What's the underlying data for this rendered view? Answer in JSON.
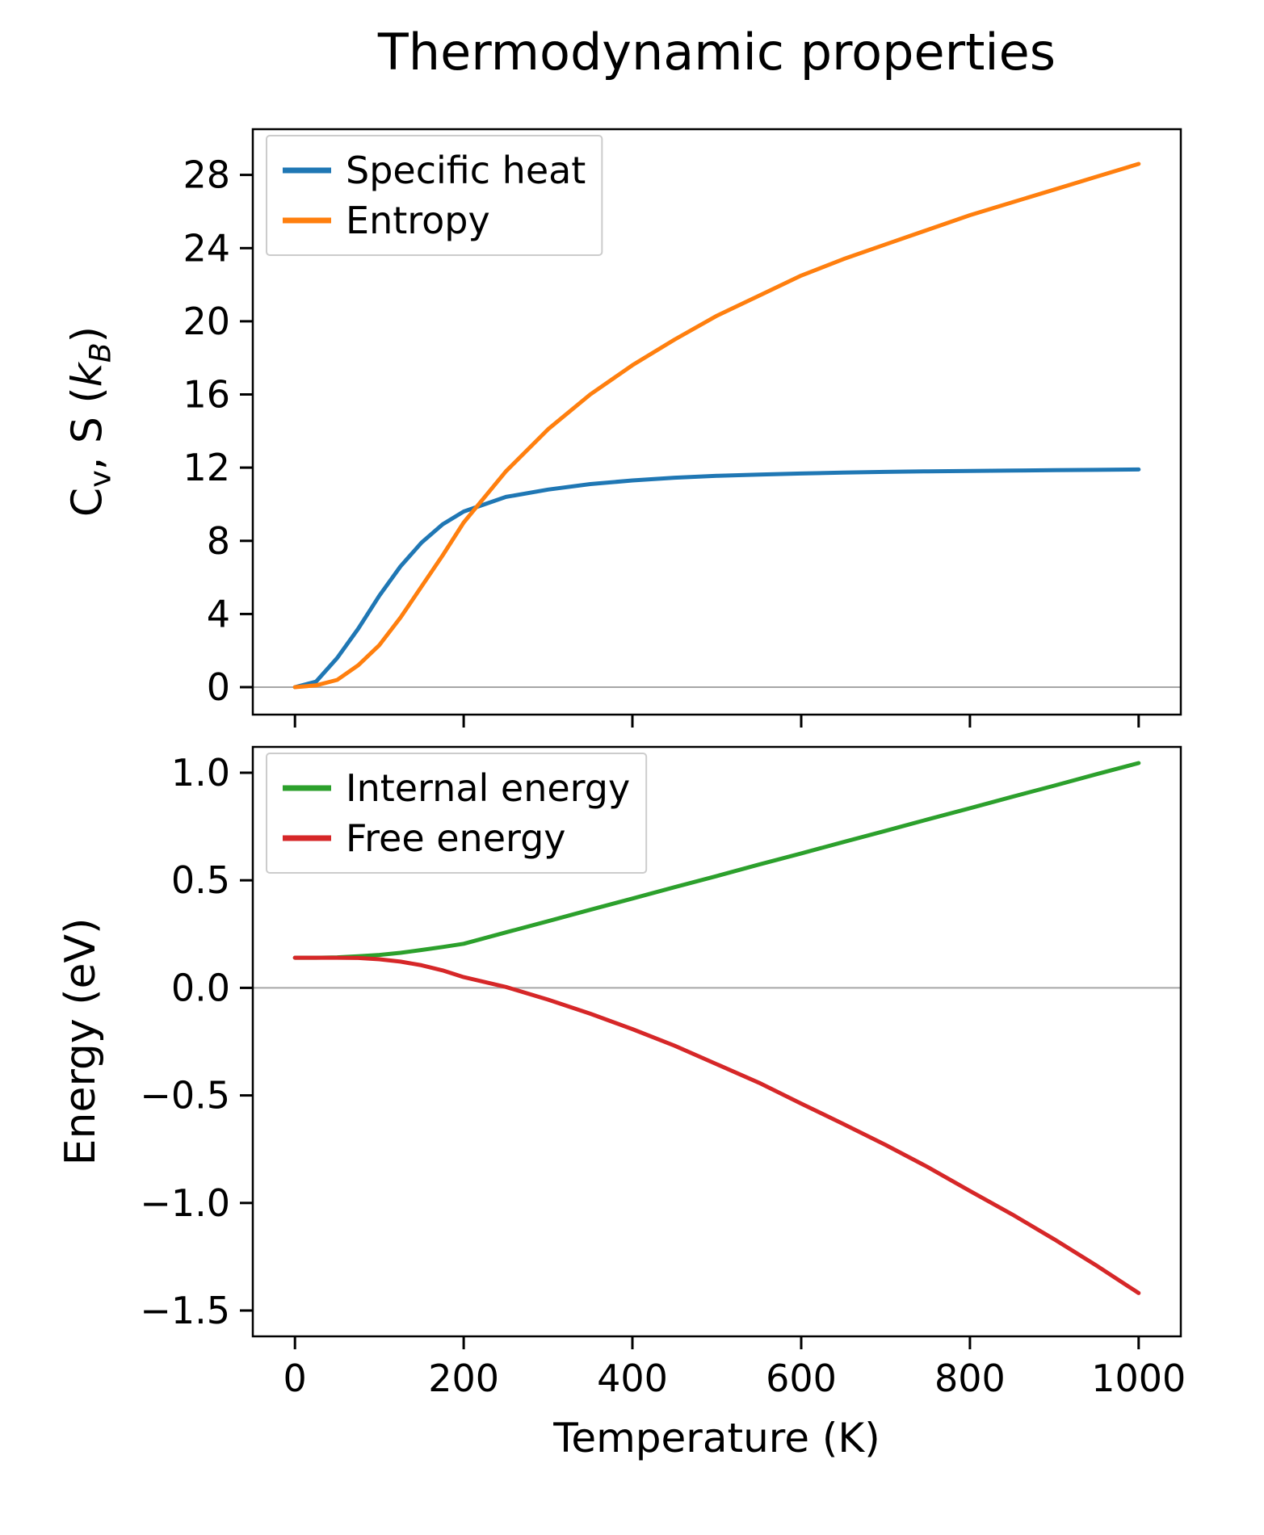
{
  "figure": {
    "title": "Thermodynamic properties",
    "xlabel": "Temperature (K)",
    "background": "#ffffff"
  },
  "chart_data": [
    {
      "id": "cv-entropy",
      "type": "line",
      "title": "",
      "xlabel": "",
      "ylabel": "Cv, S (kB)",
      "ylabel_parts": [
        {
          "t": "C"
        },
        {
          "t": "v",
          "sub": true
        },
        {
          "t": ", S ("
        },
        {
          "t": "k",
          "italic": true
        },
        {
          "t": "B",
          "sub": true,
          "italic": true
        },
        {
          "t": ")"
        }
      ],
      "xlim": [
        -50,
        1050
      ],
      "ylim": [
        -1.5,
        30.5
      ],
      "xticks": [
        0,
        200,
        400,
        600,
        800,
        1000
      ],
      "xtick_labels": [],
      "yticks": [
        0,
        4,
        8,
        12,
        16,
        20,
        24,
        28
      ],
      "ytick_labels": [
        "0",
        "4",
        "8",
        "12",
        "16",
        "20",
        "24",
        "28"
      ],
      "grid": false,
      "zero_line": true,
      "legend": {
        "position": "upper-left"
      },
      "x": [
        0,
        25,
        50,
        75,
        100,
        125,
        150,
        175,
        200,
        250,
        300,
        350,
        400,
        450,
        500,
        550,
        600,
        650,
        700,
        750,
        800,
        850,
        900,
        950,
        1000
      ],
      "series": [
        {
          "name": "Specific heat",
          "color": "#1f77b4",
          "values": [
            0,
            0.3,
            1.6,
            3.2,
            5.0,
            6.6,
            7.9,
            8.9,
            9.6,
            10.4,
            10.8,
            11.1,
            11.3,
            11.45,
            11.55,
            11.62,
            11.68,
            11.73,
            11.77,
            11.8,
            11.82,
            11.84,
            11.86,
            11.88,
            11.9
          ]
        },
        {
          "name": "Entropy",
          "color": "#ff7f0e",
          "values": [
            0,
            0.1,
            0.4,
            1.2,
            2.3,
            3.8,
            5.5,
            7.2,
            9.0,
            11.8,
            14.1,
            16.0,
            17.6,
            19.0,
            20.3,
            21.4,
            22.5,
            23.4,
            24.2,
            25.0,
            25.8,
            26.5,
            27.2,
            27.9,
            28.6
          ]
        }
      ]
    },
    {
      "id": "energy",
      "type": "line",
      "title": "",
      "xlabel": "Temperature (K)",
      "ylabel": "Energy (eV)",
      "xlim": [
        -50,
        1050
      ],
      "ylim": [
        -1.62,
        1.12
      ],
      "xticks": [
        0,
        200,
        400,
        600,
        800,
        1000
      ],
      "xtick_labels": [
        "0",
        "200",
        "400",
        "600",
        "800",
        "1000"
      ],
      "yticks": [
        -1.5,
        -1.0,
        -0.5,
        0.0,
        0.5,
        1.0
      ],
      "ytick_labels": [
        "−1.5",
        "−1.0",
        "−0.5",
        "0.0",
        "0.5",
        "1.0"
      ],
      "grid": false,
      "zero_line": true,
      "legend": {
        "position": "upper-left"
      },
      "x": [
        0,
        25,
        50,
        75,
        100,
        125,
        150,
        175,
        200,
        250,
        300,
        350,
        400,
        450,
        500,
        550,
        600,
        650,
        700,
        750,
        800,
        850,
        900,
        950,
        1000
      ],
      "series": [
        {
          "name": "Internal energy",
          "color": "#2ca02c",
          "values": [
            0.14,
            0.14,
            0.142,
            0.147,
            0.153,
            0.163,
            0.176,
            0.19,
            0.205,
            0.258,
            0.31,
            0.363,
            0.415,
            0.468,
            0.52,
            0.573,
            0.625,
            0.678,
            0.73,
            0.783,
            0.835,
            0.888,
            0.94,
            0.993,
            1.045
          ]
        },
        {
          "name": "Free energy",
          "color": "#d62728",
          "values": [
            0.14,
            0.14,
            0.14,
            0.139,
            0.133,
            0.122,
            0.105,
            0.081,
            0.05,
            0.004,
            -0.055,
            -0.12,
            -0.192,
            -0.269,
            -0.355,
            -0.441,
            -0.538,
            -0.633,
            -0.73,
            -0.833,
            -0.944,
            -1.053,
            -1.169,
            -1.291,
            -1.419
          ]
        }
      ]
    }
  ]
}
